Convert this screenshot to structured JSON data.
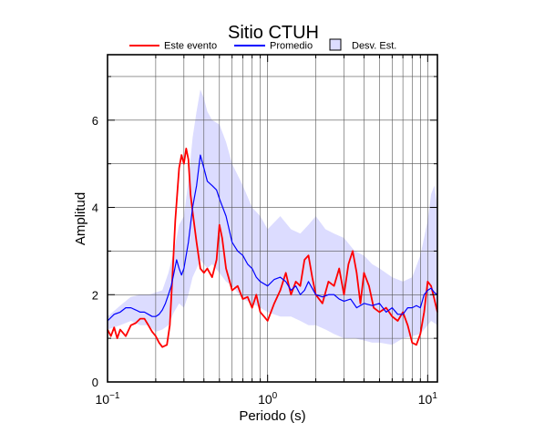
{
  "chart_data": {
    "type": "line",
    "title": "Sitio CTUH",
    "xlabel": "Periodo (s)",
    "ylabel": "Amplitud",
    "x_scale": "log",
    "xlim": [
      0.1,
      11.5
    ],
    "ylim": [
      0,
      7.5
    ],
    "x_ticks": [
      {
        "value": 0.1,
        "base": "10",
        "exp": "−1"
      },
      {
        "value": 1,
        "base": "10",
        "exp": "0"
      },
      {
        "value": 10,
        "base": "10",
        "exp": "1"
      }
    ],
    "y_ticks": [
      0,
      2,
      4,
      6
    ],
    "y_minor_ticks": [
      1,
      3,
      5,
      7
    ],
    "grid": true,
    "legend": {
      "placement": "top",
      "entries": [
        {
          "label": "Este evento",
          "type": "line",
          "color": "#ff0000"
        },
        {
          "label": "Promedio",
          "type": "line",
          "color": "#0000ff"
        },
        {
          "label": "Desv. Est.",
          "type": "area",
          "color": "#dcdcff"
        }
      ]
    },
    "series": [
      {
        "name": "Este evento",
        "color": "#ff0000",
        "x": [
          0.1,
          0.105,
          0.11,
          0.115,
          0.12,
          0.13,
          0.14,
          0.15,
          0.16,
          0.17,
          0.18,
          0.19,
          0.2,
          0.21,
          0.22,
          0.235,
          0.245,
          0.255,
          0.265,
          0.28,
          0.29,
          0.3,
          0.31,
          0.32,
          0.33,
          0.34,
          0.36,
          0.38,
          0.4,
          0.42,
          0.45,
          0.48,
          0.5,
          0.52,
          0.55,
          0.58,
          0.6,
          0.65,
          0.7,
          0.75,
          0.8,
          0.85,
          0.9,
          0.95,
          1.0,
          1.1,
          1.2,
          1.3,
          1.4,
          1.5,
          1.6,
          1.7,
          1.8,
          1.9,
          2.0,
          2.2,
          2.4,
          2.6,
          2.8,
          3.0,
          3.2,
          3.4,
          3.6,
          3.8,
          4.0,
          4.3,
          4.6,
          5.0,
          5.5,
          6.0,
          6.5,
          7.0,
          7.5,
          8.0,
          8.5,
          9.0,
          9.5,
          10.0,
          10.5,
          11.0,
          11.5
        ],
        "values": [
          1.2,
          1.05,
          1.25,
          1.0,
          1.2,
          1.05,
          1.3,
          1.35,
          1.45,
          1.45,
          1.3,
          1.15,
          1.05,
          0.9,
          0.8,
          0.85,
          1.3,
          2.5,
          3.7,
          4.9,
          5.2,
          5.0,
          5.35,
          5.1,
          4.3,
          3.9,
          3.2,
          2.6,
          2.5,
          2.6,
          2.4,
          2.8,
          3.6,
          3.3,
          2.6,
          2.3,
          2.1,
          2.2,
          1.9,
          1.95,
          1.7,
          2.0,
          1.6,
          1.5,
          1.4,
          1.8,
          2.1,
          2.5,
          2.0,
          2.3,
          2.2,
          2.8,
          2.9,
          2.4,
          2.0,
          1.8,
          2.3,
          2.2,
          2.6,
          2.0,
          2.7,
          3.0,
          2.5,
          1.8,
          2.5,
          2.2,
          1.7,
          1.6,
          1.7,
          1.5,
          1.4,
          1.6,
          1.3,
          0.9,
          0.85,
          1.1,
          1.6,
          2.3,
          2.2,
          1.9,
          1.6
        ]
      },
      {
        "name": "Promedio",
        "color": "#0000ff",
        "x": [
          0.1,
          0.11,
          0.12,
          0.13,
          0.14,
          0.15,
          0.16,
          0.17,
          0.18,
          0.19,
          0.2,
          0.21,
          0.22,
          0.23,
          0.24,
          0.25,
          0.26,
          0.27,
          0.28,
          0.29,
          0.3,
          0.32,
          0.34,
          0.36,
          0.38,
          0.4,
          0.42,
          0.45,
          0.48,
          0.5,
          0.55,
          0.6,
          0.65,
          0.7,
          0.75,
          0.8,
          0.85,
          0.9,
          1.0,
          1.1,
          1.2,
          1.3,
          1.4,
          1.5,
          1.6,
          1.7,
          1.8,
          2.0,
          2.2,
          2.4,
          2.6,
          2.8,
          3.0,
          3.3,
          3.6,
          4.0,
          4.5,
          5.0,
          5.5,
          6.0,
          6.5,
          7.0,
          7.5,
          8.0,
          8.5,
          9.0,
          9.5,
          10.0,
          10.5,
          11.0,
          11.5
        ],
        "values": [
          1.4,
          1.55,
          1.6,
          1.7,
          1.7,
          1.65,
          1.6,
          1.6,
          1.55,
          1.5,
          1.5,
          1.55,
          1.65,
          1.8,
          2.0,
          2.2,
          2.5,
          2.8,
          2.6,
          2.45,
          2.6,
          3.2,
          4.0,
          4.5,
          5.2,
          4.9,
          4.6,
          4.5,
          4.4,
          4.2,
          3.8,
          3.2,
          3.0,
          2.9,
          2.7,
          2.6,
          2.4,
          2.3,
          2.2,
          2.35,
          2.4,
          2.3,
          2.1,
          2.2,
          2.0,
          2.1,
          2.3,
          2.0,
          1.95,
          2.0,
          2.0,
          1.9,
          1.85,
          1.9,
          1.7,
          1.8,
          1.75,
          1.8,
          1.6,
          1.7,
          1.55,
          1.55,
          1.7,
          1.7,
          1.75,
          1.7,
          2.0,
          2.1,
          2.15,
          2.05,
          2.0
        ]
      },
      {
        "name": "Desv. Est.",
        "type": "band",
        "color": "#dcdcff",
        "x": [
          0.1,
          0.12,
          0.14,
          0.16,
          0.18,
          0.2,
          0.22,
          0.24,
          0.26,
          0.28,
          0.3,
          0.32,
          0.34,
          0.36,
          0.38,
          0.4,
          0.42,
          0.45,
          0.5,
          0.55,
          0.6,
          0.7,
          0.8,
          0.9,
          1.0,
          1.2,
          1.4,
          1.6,
          1.8,
          2.0,
          2.3,
          2.6,
          3.0,
          3.5,
          4.0,
          4.5,
          5.0,
          6.0,
          7.0,
          8.0,
          9.0,
          10.0,
          10.5,
          11.0,
          11.5
        ],
        "upper": [
          1.5,
          1.75,
          1.95,
          2.0,
          2.0,
          2.05,
          2.1,
          2.5,
          3.0,
          3.6,
          3.8,
          4.6,
          5.6,
          6.2,
          6.7,
          6.5,
          6.2,
          6.0,
          5.9,
          5.5,
          5.0,
          4.5,
          4.0,
          3.8,
          3.5,
          3.8,
          3.5,
          3.4,
          3.6,
          3.8,
          3.5,
          3.4,
          3.3,
          3.0,
          2.9,
          2.7,
          2.6,
          2.4,
          2.3,
          2.4,
          2.9,
          3.7,
          4.3,
          4.5,
          4.0
        ],
        "lower": [
          1.2,
          1.3,
          1.4,
          1.3,
          1.3,
          1.15,
          1.2,
          1.3,
          1.6,
          1.8,
          1.7,
          2.0,
          2.4,
          2.6,
          2.8,
          2.7,
          2.6,
          2.7,
          2.5,
          2.3,
          2.2,
          1.9,
          1.8,
          1.7,
          1.6,
          1.5,
          1.5,
          1.4,
          1.3,
          1.3,
          1.2,
          1.1,
          1.0,
          1.0,
          0.95,
          0.9,
          0.9,
          0.85,
          1.0,
          1.05,
          1.1,
          1.3,
          1.4,
          1.35,
          1.3
        ]
      }
    ]
  }
}
